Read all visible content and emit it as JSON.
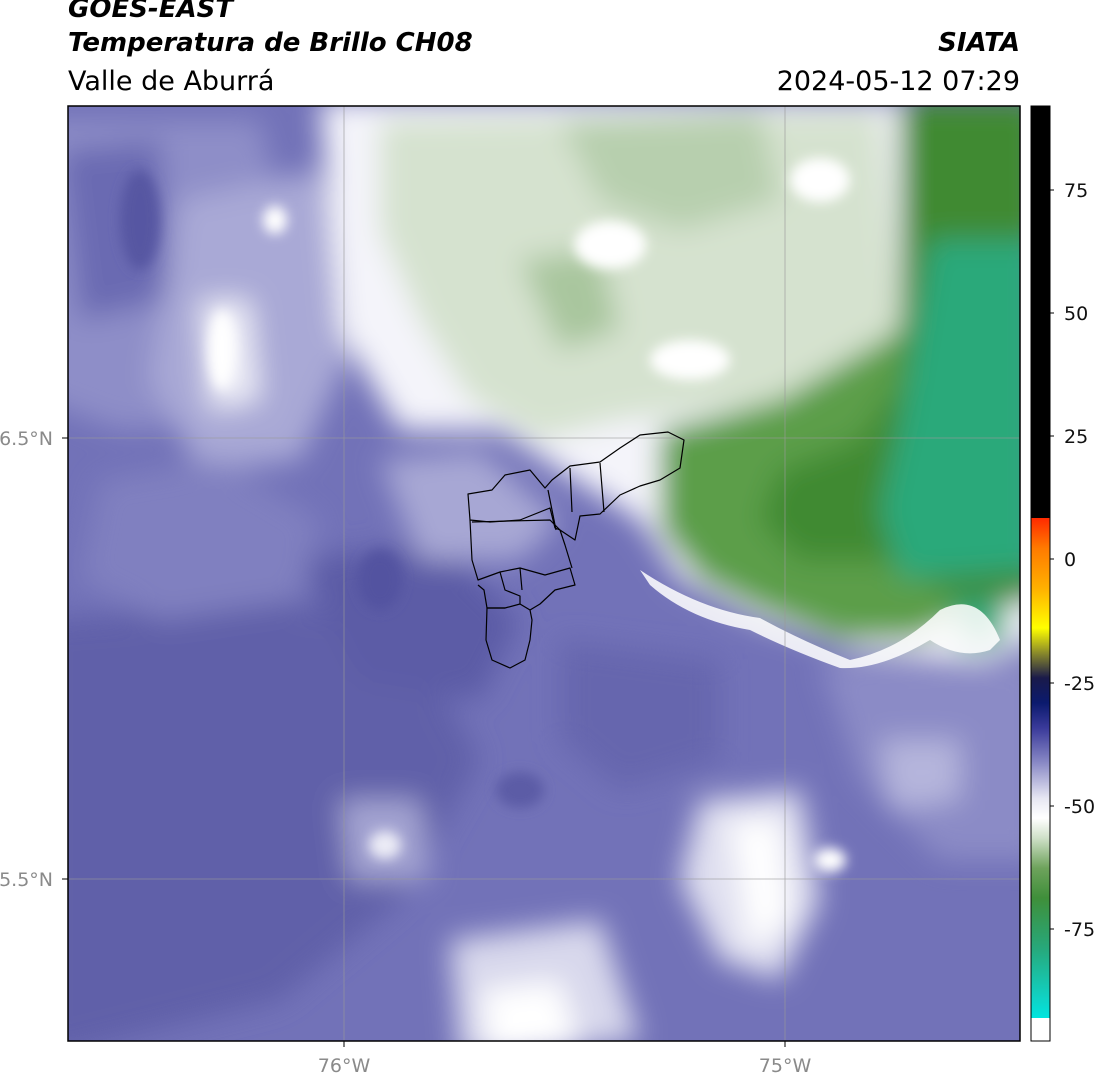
{
  "header": {
    "satellite": "GOES-EAST",
    "product": "Temperatura de Brillo CH08",
    "region": "Valle de Aburrá",
    "agency": "SIATA",
    "datetime": "2024-05-12 07:29"
  },
  "axes": {
    "lat_labels": [
      "6.5°N",
      "5.5°N"
    ],
    "lon_labels": [
      "76°W",
      "75°W"
    ]
  },
  "colorbar": {
    "ticks": [
      "75",
      "50",
      "25",
      "0",
      "-25",
      "-50",
      "-75"
    ],
    "colors": {
      "top_black": "#000000",
      "red": "#ff2a00",
      "orange": "#ff9a00",
      "yellow": "#ffff00",
      "olive": "#6b6b1f",
      "navy": "#0b1a6e",
      "purple": "#4e4ea6",
      "lavender": "#cfcfe8",
      "white": "#ffffff",
      "light_green": "#c7dcc0",
      "green": "#3f8f3a",
      "teal": "#24b07a",
      "cyan": "#00e5df"
    }
  },
  "map_colors": {
    "cold_cloud_green": "#3f8a33",
    "teal_core": "#2aa97a",
    "pale_green": "#d7e4d2",
    "white": "#ffffff",
    "lavender": "#c9c9e3",
    "mid_purple": "#8585c2",
    "deep_purple": "#5a5aa6"
  }
}
